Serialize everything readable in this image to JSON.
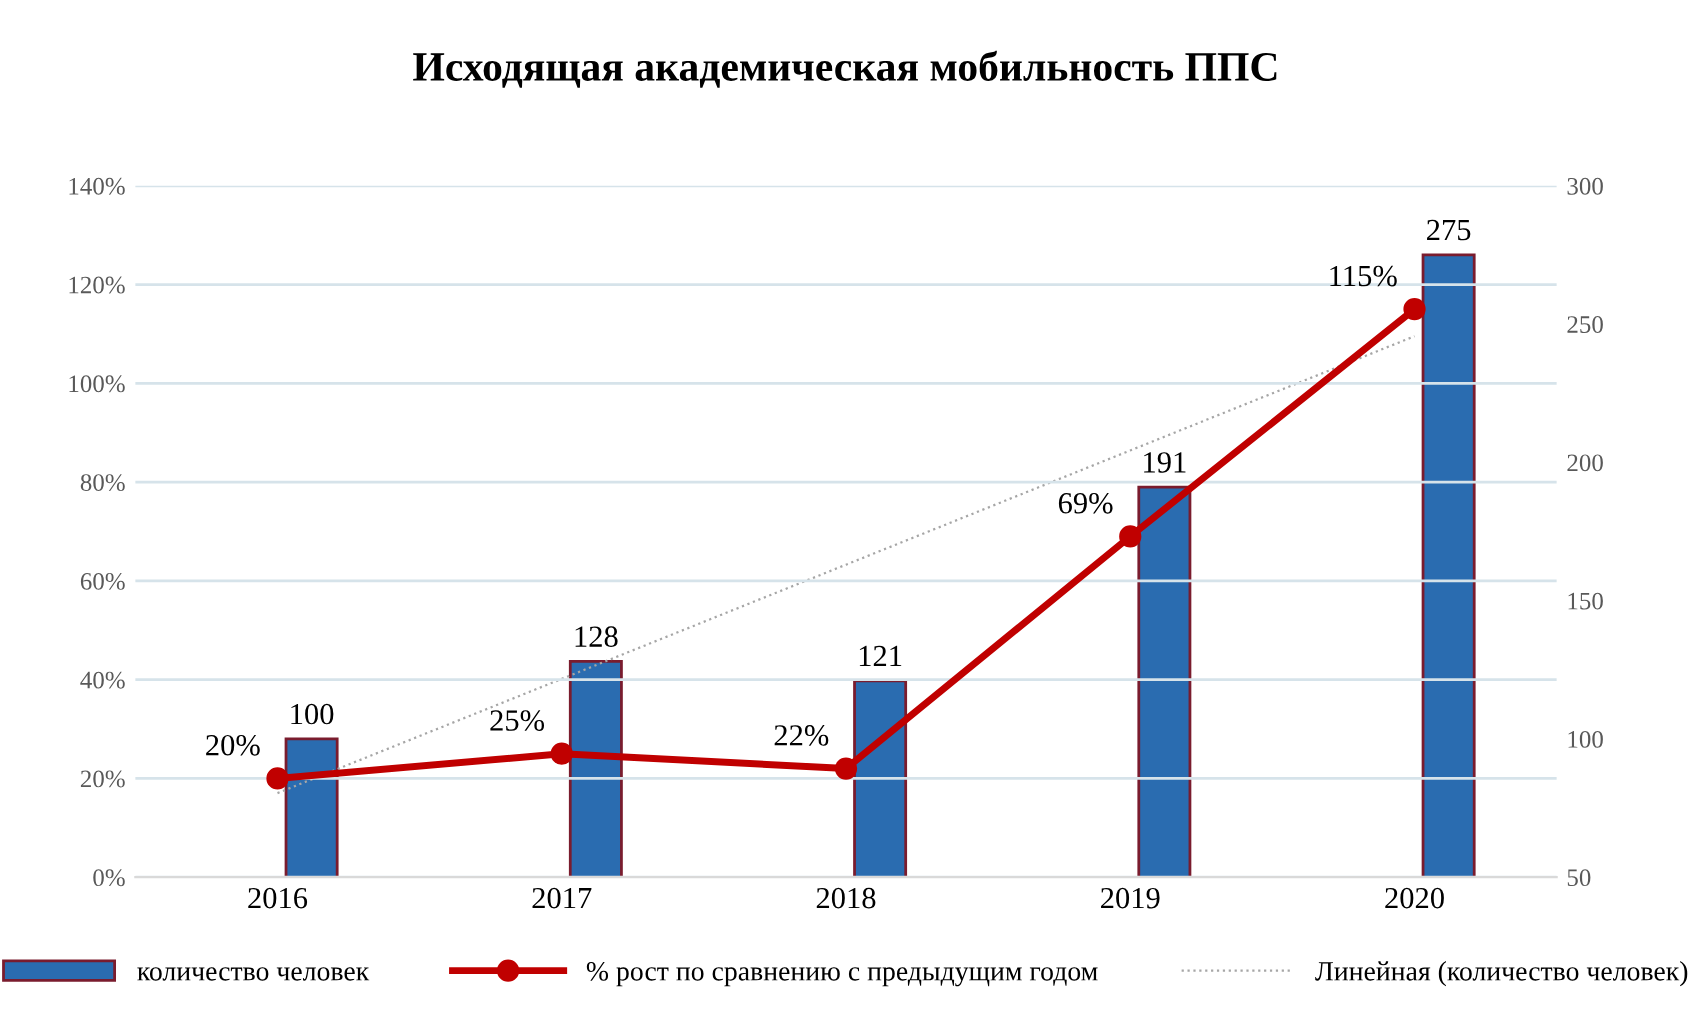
{
  "chart_data": {
    "type": "bar",
    "title": "Исходящая академическая мобильность ППС",
    "categories": [
      "2016",
      "2017",
      "2018",
      "2019",
      "2020"
    ],
    "series": [
      {
        "name": "количество человек",
        "axis": "y2",
        "color": "#2a6cb0",
        "values": [
          100,
          128,
          121,
          191,
          275
        ],
        "value_labels": [
          "100",
          "128",
          "121",
          "191",
          "275"
        ]
      },
      {
        "name": "% рост по сравнению с предыдущим годом",
        "type": "line",
        "axis": "y",
        "color": "#c00000",
        "marker": "circle",
        "values": [
          20,
          25,
          22,
          69,
          115
        ],
        "value_labels": [
          "20%",
          "25%",
          "22%",
          "69%",
          "115%"
        ]
      },
      {
        "name": "Линейная (количество человек)",
        "type": "line",
        "axis": "y2",
        "color": "#a6a6a6",
        "line_style": "dotted",
        "values": [
          80.4,
          121.7,
          163,
          204.3,
          245.6
        ]
      }
    ],
    "ylim": [
      0,
      140
    ],
    "yticks": [
      {
        "value": 0,
        "label": "0%"
      },
      {
        "value": 20,
        "label": "20%"
      },
      {
        "value": 40,
        "label": "40%"
      },
      {
        "value": 60,
        "label": "60%"
      },
      {
        "value": 80,
        "label": "80%"
      },
      {
        "value": 100,
        "label": "100%"
      },
      {
        "value": 120,
        "label": "120%"
      },
      {
        "value": 140,
        "label": "140%"
      }
    ],
    "y2lim": [
      50,
      300
    ],
    "y2ticks": [
      50,
      100,
      150,
      200,
      250,
      300
    ],
    "grid": "y",
    "legend": "bottom"
  }
}
